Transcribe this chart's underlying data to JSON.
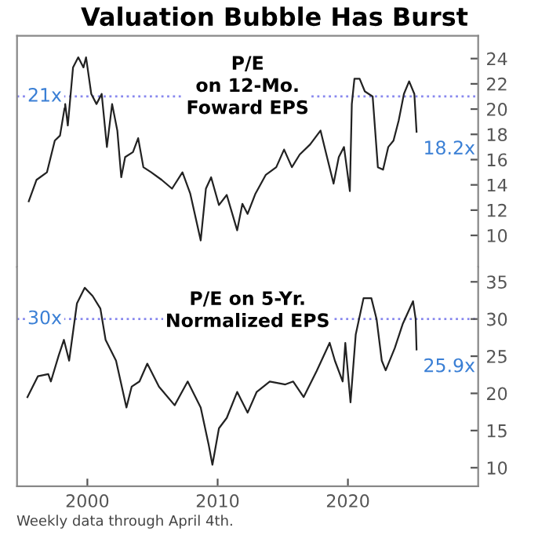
{
  "chart_data": [
    {
      "type": "line",
      "title": "Valuation Bubble Has Burst",
      "tick_labels": "y",
      "xlim": [
        1994.6,
        2030
      ],
      "ylim": [
        7.5,
        25.8
      ],
      "yticks": [
        10,
        12,
        14,
        16,
        18,
        20,
        22,
        24
      ],
      "grid": false,
      "legend": false,
      "x": [
        1995.5,
        1996.1,
        1996.9,
        1997.5,
        1997.9,
        1998.3,
        1998.5,
        1998.9,
        1999.3,
        1999.7,
        1999.9,
        2000.3,
        2000.7,
        2001.1,
        2001.5,
        2001.9,
        2002.3,
        2002.6,
        2002.9,
        2003.5,
        2003.9,
        2004.3,
        2004.9,
        2005.7,
        2006.5,
        2007.3,
        2007.9,
        2008.7,
        2009.1,
        2009.5,
        2010.1,
        2010.7,
        2011.5,
        2011.9,
        2012.3,
        2012.9,
        2013.7,
        2014.5,
        2015.1,
        2015.7,
        2016.3,
        2017.1,
        2017.9,
        2018.3,
        2018.9,
        2019.3,
        2019.7,
        2020.15,
        2020.3,
        2020.5,
        2020.9,
        2021.3,
        2021.9,
        2022.3,
        2022.7,
        2023.1,
        2023.5,
        2023.9,
        2024.3,
        2024.7,
        2025.1,
        2025.27
      ],
      "series": [
        {
          "color": "#222222",
          "values": [
            12.7,
            14.4,
            15.0,
            17.5,
            17.9,
            20.4,
            18.7,
            23.3,
            24.1,
            23.3,
            24.1,
            21.2,
            20.4,
            21.2,
            17.0,
            20.4,
            18.3,
            14.6,
            16.2,
            16.6,
            17.7,
            15.4,
            15.0,
            14.4,
            13.7,
            15.0,
            13.3,
            9.6,
            13.7,
            14.6,
            12.4,
            13.2,
            10.4,
            12.5,
            11.7,
            13.3,
            14.8,
            15.4,
            16.8,
            15.4,
            16.4,
            17.2,
            18.3,
            16.6,
            14.1,
            16.2,
            17.0,
            13.5,
            20.4,
            22.4,
            22.4,
            21.4,
            21.0,
            15.4,
            15.2,
            17.0,
            17.5,
            19.1,
            21.2,
            22.2,
            21.2,
            18.2
          ]
        }
      ],
      "ref_lines": [
        {
          "axis": "y",
          "value": 21,
          "label": "21x",
          "color": "#8888ee",
          "line_style": "dotted"
        }
      ],
      "annotations": [
        "P/E\non 12-Mo.\nFoward EPS",
        {
          "text": "18.2x",
          "x": 2025.27,
          "y": 18.2
        }
      ]
    },
    {
      "type": "line",
      "xlim": [
        1994.6,
        2030
      ],
      "ylim": [
        7.5,
        37
      ],
      "yticks": [
        10,
        15,
        20,
        25,
        30,
        35
      ],
      "xticks": [
        2000,
        2010,
        2020
      ],
      "grid": false,
      "legend": false,
      "x": [
        1995.4,
        1996.2,
        1997.0,
        1997.2,
        1997.8,
        1998.2,
        1998.6,
        1999.2,
        1999.8,
        2000.4,
        2001.0,
        2001.4,
        2002.2,
        2003.0,
        2003.4,
        2004.0,
        2004.6,
        2005.5,
        2006.7,
        2007.7,
        2008.7,
        2009.3,
        2009.6,
        2010.1,
        2010.7,
        2011.5,
        2012.3,
        2013.0,
        2014.0,
        2015.2,
        2015.8,
        2016.6,
        2017.6,
        2018.6,
        2019.0,
        2019.6,
        2019.8,
        2020.2,
        2020.6,
        2021.2,
        2021.8,
        2022.2,
        2022.6,
        2022.9,
        2023.6,
        2024.2,
        2025.0,
        2025.2,
        2025.27
      ],
      "series": [
        {
          "color": "#222222",
          "values": [
            19.5,
            22.3,
            22.6,
            21.6,
            25.1,
            27.2,
            24.4,
            32.1,
            34.2,
            33.1,
            31.4,
            27.2,
            24.4,
            18.1,
            20.9,
            21.6,
            24.0,
            20.9,
            18.4,
            21.6,
            18.1,
            13.2,
            10.4,
            15.3,
            16.7,
            20.2,
            17.4,
            20.2,
            21.6,
            21.2,
            21.6,
            19.5,
            23.0,
            26.8,
            24.4,
            21.6,
            26.8,
            18.8,
            27.9,
            32.8,
            32.8,
            30.0,
            24.4,
            23.1,
            26.1,
            29.3,
            32.4,
            30.0,
            25.9
          ]
        }
      ],
      "ref_lines": [
        {
          "axis": "y",
          "value": 30,
          "label": "30x",
          "color": "#8888ee",
          "line_style": "dotted"
        }
      ],
      "annotations": [
        "P/E on 5-Yr.\nNormalized EPS",
        {
          "text": "25.9x",
          "x": 2025.27,
          "y": 25.9
        },
        "Weekly data through April 4th."
      ]
    }
  ]
}
